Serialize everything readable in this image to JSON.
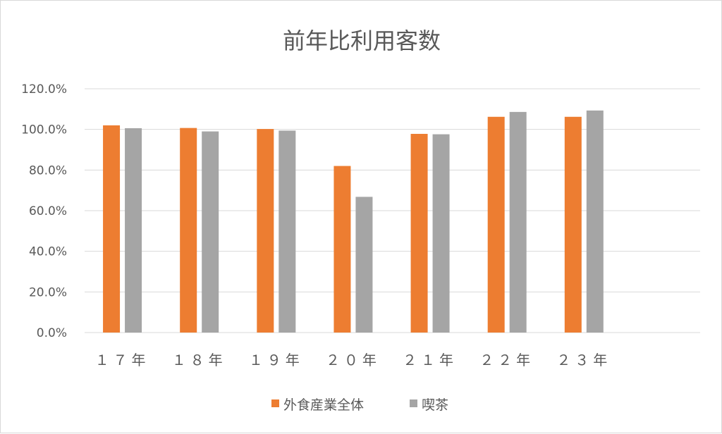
{
  "chart_data": {
    "type": "bar",
    "title": "前年比利用客数",
    "categories": [
      "１７年",
      "１８年",
      "１９年",
      "２０年",
      "２１年",
      "２２年",
      "２３年"
    ],
    "series": [
      {
        "name": "外食産業全体",
        "color": "#ed7d31",
        "values": [
          102.0,
          100.7,
          100.2,
          82.0,
          97.8,
          106.2,
          106.2
        ]
      },
      {
        "name": "喫茶",
        "color": "#a5a5a5",
        "values": [
          100.6,
          99.0,
          99.4,
          66.8,
          97.6,
          108.6,
          109.3
        ]
      }
    ],
    "ylim": [
      0,
      120
    ],
    "yticks": [
      "0.0%",
      "20.0%",
      "40.0%",
      "60.0%",
      "80.0%",
      "100.0%",
      "120.0%"
    ],
    "ytick_values": [
      0,
      20,
      40,
      60,
      80,
      100,
      120
    ],
    "xlabel": "",
    "ylabel": "",
    "grid": true,
    "legend_position": "bottom"
  }
}
